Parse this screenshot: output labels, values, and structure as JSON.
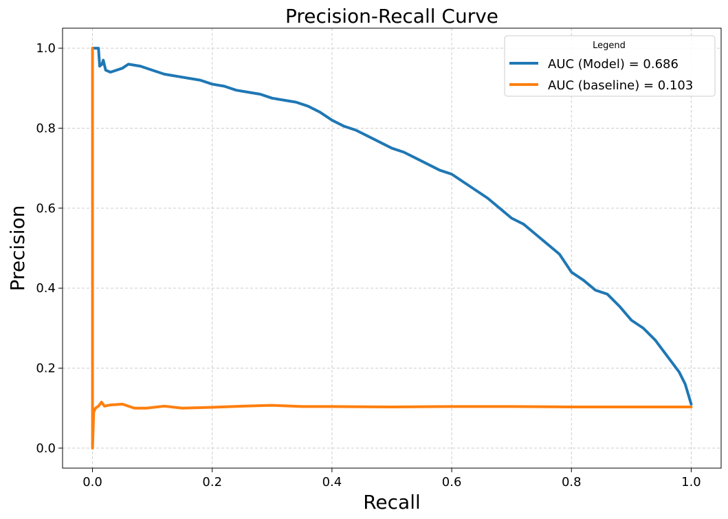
{
  "chart_data": {
    "type": "line",
    "title": "Precision-Recall Curve",
    "xlabel": "Recall",
    "ylabel": "Precision",
    "xlim": [
      -0.05,
      1.05
    ],
    "ylim": [
      -0.05,
      1.05
    ],
    "xticks": [
      0.0,
      0.2,
      0.4,
      0.6,
      0.8,
      1.0
    ],
    "yticks": [
      0.0,
      0.2,
      0.4,
      0.6,
      0.8,
      1.0
    ],
    "xtick_labels": [
      "0.0",
      "0.2",
      "0.4",
      "0.6",
      "0.8",
      "1.0"
    ],
    "ytick_labels": [
      "0.0",
      "0.2",
      "0.4",
      "0.6",
      "0.8",
      "1.0"
    ],
    "grid": true,
    "legend": {
      "title": "Legend",
      "position": "top-right"
    },
    "series": [
      {
        "name": "AUC (Model) = 0.686",
        "color": "#1f77b4",
        "points": [
          [
            0.0,
            1.0
          ],
          [
            0.01,
            1.0
          ],
          [
            0.012,
            0.955
          ],
          [
            0.016,
            0.96
          ],
          [
            0.018,
            0.97
          ],
          [
            0.022,
            0.945
          ],
          [
            0.03,
            0.94
          ],
          [
            0.04,
            0.945
          ],
          [
            0.05,
            0.95
          ],
          [
            0.06,
            0.96
          ],
          [
            0.08,
            0.955
          ],
          [
            0.1,
            0.945
          ],
          [
            0.12,
            0.935
          ],
          [
            0.14,
            0.93
          ],
          [
            0.16,
            0.925
          ],
          [
            0.18,
            0.92
          ],
          [
            0.2,
            0.91
          ],
          [
            0.22,
            0.905
          ],
          [
            0.24,
            0.895
          ],
          [
            0.26,
            0.89
          ],
          [
            0.28,
            0.885
          ],
          [
            0.3,
            0.875
          ],
          [
            0.32,
            0.87
          ],
          [
            0.34,
            0.865
          ],
          [
            0.36,
            0.855
          ],
          [
            0.38,
            0.84
          ],
          [
            0.4,
            0.82
          ],
          [
            0.42,
            0.805
          ],
          [
            0.44,
            0.795
          ],
          [
            0.46,
            0.78
          ],
          [
            0.48,
            0.765
          ],
          [
            0.5,
            0.75
          ],
          [
            0.52,
            0.74
          ],
          [
            0.54,
            0.725
          ],
          [
            0.56,
            0.71
          ],
          [
            0.58,
            0.695
          ],
          [
            0.6,
            0.685
          ],
          [
            0.62,
            0.665
          ],
          [
            0.64,
            0.645
          ],
          [
            0.66,
            0.625
          ],
          [
            0.68,
            0.6
          ],
          [
            0.7,
            0.575
          ],
          [
            0.72,
            0.56
          ],
          [
            0.74,
            0.535
          ],
          [
            0.76,
            0.51
          ],
          [
            0.78,
            0.485
          ],
          [
            0.8,
            0.44
          ],
          [
            0.82,
            0.42
          ],
          [
            0.84,
            0.395
          ],
          [
            0.86,
            0.385
          ],
          [
            0.88,
            0.355
          ],
          [
            0.9,
            0.32
          ],
          [
            0.92,
            0.3
          ],
          [
            0.94,
            0.27
          ],
          [
            0.96,
            0.23
          ],
          [
            0.98,
            0.19
          ],
          [
            0.99,
            0.16
          ],
          [
            1.0,
            0.11
          ]
        ]
      },
      {
        "name": "AUC (baseline) = 0.103",
        "color": "#ff7f0e",
        "points": [
          [
            0.0,
            1.0
          ],
          [
            0.0,
            0.0
          ],
          [
            0.002,
            0.09
          ],
          [
            0.005,
            0.1
          ],
          [
            0.01,
            0.105
          ],
          [
            0.015,
            0.115
          ],
          [
            0.02,
            0.105
          ],
          [
            0.03,
            0.108
          ],
          [
            0.05,
            0.11
          ],
          [
            0.07,
            0.1
          ],
          [
            0.09,
            0.1
          ],
          [
            0.12,
            0.105
          ],
          [
            0.15,
            0.1
          ],
          [
            0.2,
            0.102
          ],
          [
            0.25,
            0.105
          ],
          [
            0.3,
            0.107
          ],
          [
            0.35,
            0.104
          ],
          [
            0.4,
            0.104
          ],
          [
            0.5,
            0.103
          ],
          [
            0.6,
            0.104
          ],
          [
            0.7,
            0.104
          ],
          [
            0.8,
            0.103
          ],
          [
            0.9,
            0.103
          ],
          [
            1.0,
            0.103
          ]
        ]
      }
    ]
  }
}
